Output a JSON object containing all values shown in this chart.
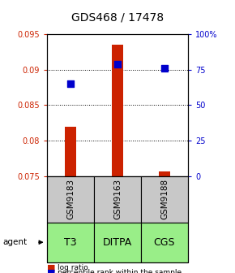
{
  "title": "GDS468 / 17478",
  "samples": [
    "GSM9183",
    "GSM9163",
    "GSM9188"
  ],
  "agents": [
    "T3",
    "DITPA",
    "CGS"
  ],
  "x_positions": [
    1,
    2,
    3
  ],
  "bar_base": 0.075,
  "bar_tops": [
    0.082,
    0.0935,
    0.0757
  ],
  "percentile_ranks": [
    65,
    79,
    76
  ],
  "ylim_left": [
    0.075,
    0.095
  ],
  "ylim_right": [
    0,
    100
  ],
  "yticks_left": [
    0.075,
    0.08,
    0.085,
    0.09,
    0.095
  ],
  "ytick_labels_left": [
    "0.075",
    "0.08",
    "0.085",
    "0.09",
    "0.095"
  ],
  "ytick_labels_right": [
    "0",
    "25",
    "50",
    "75",
    "100%"
  ],
  "bar_color": "#cc2200",
  "dot_color": "#0000cc",
  "sample_bg_color": "#c8c8c8",
  "agent_bg_color": "#99ee88",
  "bar_width": 0.25,
  "dot_size": 40,
  "agent_label_fontsize": 9,
  "sample_label_fontsize": 7.5,
  "title_fontsize": 10
}
